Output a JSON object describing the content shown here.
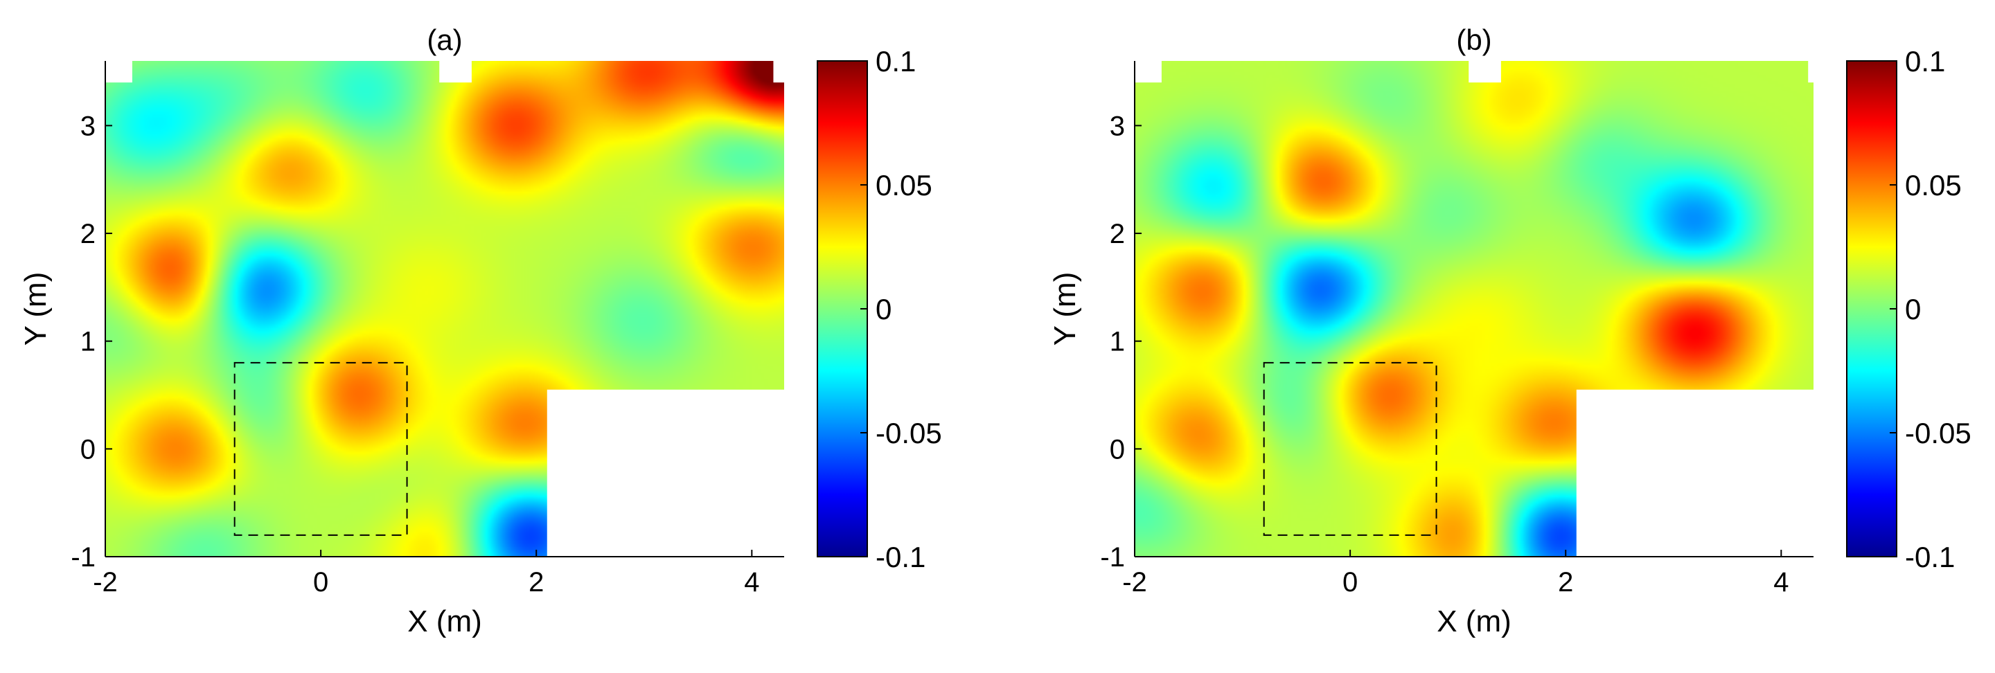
{
  "chart_data": [
    {
      "type": "heatmap",
      "title": "(a)",
      "xlabel": "X (m)",
      "ylabel": "Y (m)",
      "xlim": [
        -2,
        4.3
      ],
      "ylim": [
        -1,
        3.6
      ],
      "xticks": [
        -2,
        0,
        2,
        4
      ],
      "yticks": [
        -1,
        0,
        1,
        2,
        3
      ],
      "clim": [
        -0.1,
        0.1
      ],
      "colorbar_ticks": [
        "0.1",
        "0.05",
        "0",
        "-0.05",
        "-0.1"
      ],
      "colormap": "jet",
      "dashed_box": {
        "x": [
          -0.8,
          0.8
        ],
        "y": [
          -0.8,
          0.8
        ]
      },
      "masked_regions": [
        {
          "x": [
            2.1,
            4.3
          ],
          "y": [
            -1,
            0.55
          ]
        },
        {
          "x": [
            -2,
            -1.75
          ],
          "y": [
            3.4,
            3.6
          ]
        },
        {
          "x": [
            1.1,
            1.4
          ],
          "y": [
            3.4,
            3.6
          ]
        },
        {
          "x": [
            4.2,
            4.3
          ],
          "y": [
            3.4,
            3.6
          ]
        }
      ],
      "blobs": [
        {
          "x": -1.3,
          "y": 1.6,
          "value": 0.062
        },
        {
          "x": -0.6,
          "y": 1.5,
          "value": -0.07
        },
        {
          "x": -0.3,
          "y": 2.6,
          "value": 0.035
        },
        {
          "x": -1.6,
          "y": 3.0,
          "value": -0.035
        },
        {
          "x": -0.8,
          "y": 3.2,
          "value": -0.02
        },
        {
          "x": 0.4,
          "y": 3.3,
          "value": -0.03
        },
        {
          "x": 1.8,
          "y": 3.0,
          "value": 0.05
        },
        {
          "x": 3.0,
          "y": 3.5,
          "value": 0.05
        },
        {
          "x": 4.2,
          "y": 3.5,
          "value": 0.1
        },
        {
          "x": 4.0,
          "y": 2.8,
          "value": -0.035
        },
        {
          "x": 4.0,
          "y": 1.9,
          "value": 0.04
        },
        {
          "x": 3.0,
          "y": 1.2,
          "value": -0.02
        },
        {
          "x": 0.3,
          "y": 0.5,
          "value": 0.045
        },
        {
          "x": -0.5,
          "y": 0.4,
          "value": -0.025
        },
        {
          "x": -1.3,
          "y": 0.0,
          "value": 0.04
        },
        {
          "x": -1.8,
          "y": 1.2,
          "value": -0.02
        },
        {
          "x": 0.9,
          "y": -0.6,
          "value": -0.02
        },
        {
          "x": 1.1,
          "y": -0.8,
          "value": 0.04
        },
        {
          "x": 1.9,
          "y": 0.2,
          "value": 0.04
        },
        {
          "x": 1.9,
          "y": -0.8,
          "value": -0.08
        },
        {
          "x": -1.1,
          "y": -0.9,
          "value": -0.02
        },
        {
          "x": 1.0,
          "y": 1.5,
          "value": 0.01
        }
      ]
    },
    {
      "type": "heatmap",
      "title": "(b)",
      "xlabel": "X (m)",
      "ylabel": "Y (m)",
      "xlim": [
        -2,
        4.3
      ],
      "ylim": [
        -1,
        3.6
      ],
      "xticks": [
        -2,
        0,
        2,
        4
      ],
      "yticks": [
        -1,
        0,
        1,
        2,
        3
      ],
      "clim": [
        -0.1,
        0.1
      ],
      "colorbar_ticks": [
        "0.1",
        "0.05",
        "0",
        "-0.05",
        "-0.1"
      ],
      "colormap": "jet",
      "dashed_box": {
        "x": [
          -0.8,
          0.8
        ],
        "y": [
          -0.8,
          0.8
        ]
      },
      "masked_regions": [
        {
          "x": [
            2.1,
            4.3
          ],
          "y": [
            -1,
            0.55
          ]
        },
        {
          "x": [
            -2,
            -1.75
          ],
          "y": [
            3.4,
            3.6
          ]
        },
        {
          "x": [
            1.1,
            1.4
          ],
          "y": [
            3.4,
            3.6
          ]
        },
        {
          "x": [
            4.25,
            4.3
          ],
          "y": [
            3.4,
            3.6
          ]
        }
      ],
      "blobs": [
        {
          "x": -1.2,
          "y": 2.4,
          "value": -0.045
        },
        {
          "x": -0.3,
          "y": 2.45,
          "value": 0.05
        },
        {
          "x": -0.3,
          "y": 1.5,
          "value": -0.07
        },
        {
          "x": -1.3,
          "y": 1.5,
          "value": 0.045
        },
        {
          "x": 0.3,
          "y": 0.5,
          "value": 0.045
        },
        {
          "x": -0.5,
          "y": 0.4,
          "value": -0.025
        },
        {
          "x": -1.4,
          "y": 0.1,
          "value": 0.04
        },
        {
          "x": 0.9,
          "y": 2.2,
          "value": -0.015
        },
        {
          "x": 3.2,
          "y": 2.1,
          "value": -0.06
        },
        {
          "x": 3.2,
          "y": 1.1,
          "value": 0.065
        },
        {
          "x": 1.6,
          "y": 3.2,
          "value": 0.02
        },
        {
          "x": 0.3,
          "y": 3.2,
          "value": -0.015
        },
        {
          "x": 1.1,
          "y": -0.8,
          "value": 0.04
        },
        {
          "x": 1.9,
          "y": 0.2,
          "value": 0.04
        },
        {
          "x": 1.9,
          "y": -0.8,
          "value": -0.08
        },
        {
          "x": -1.9,
          "y": -0.5,
          "value": -0.025
        },
        {
          "x": 1.2,
          "y": 1.2,
          "value": 0.012
        },
        {
          "x": 2.3,
          "y": 2.7,
          "value": -0.02
        }
      ]
    }
  ]
}
